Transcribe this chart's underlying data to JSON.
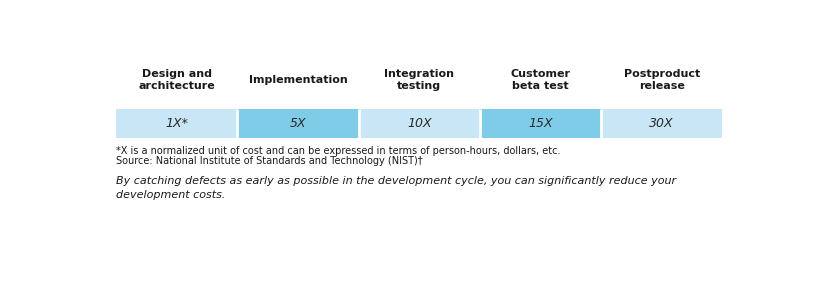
{
  "columns": [
    {
      "header": "Design and\narchitecture",
      "value": "1X*"
    },
    {
      "header": "Implementation",
      "value": "5X"
    },
    {
      "header": "Integration\ntesting",
      "value": "10X"
    },
    {
      "header": "Customer\nbeta test",
      "value": "15X"
    },
    {
      "header": "Postproduct\nrelease",
      "value": "30X"
    }
  ],
  "value_bg_colors": [
    "#c8e6f5",
    "#7fcce8",
    "#c8e6f5",
    "#7fcce8",
    "#c8e6f5"
  ],
  "footnote1": "*X is a normalized unit of cost and can be expressed in terms of person-hours, dollars, etc.",
  "footnote2": "Source: National Institute of Standards and Technology (NIST)†",
  "italic_text": "By catching defects as early as possible in the development cycle, you can significantly reduce your\ndevelopment costs.",
  "background_color": "#ffffff",
  "header_text_color": "#1a1a1a",
  "value_text_color": "#2a2a2a",
  "footnote_color": "#1a1a1a",
  "italic_color": "#1a1a1a"
}
